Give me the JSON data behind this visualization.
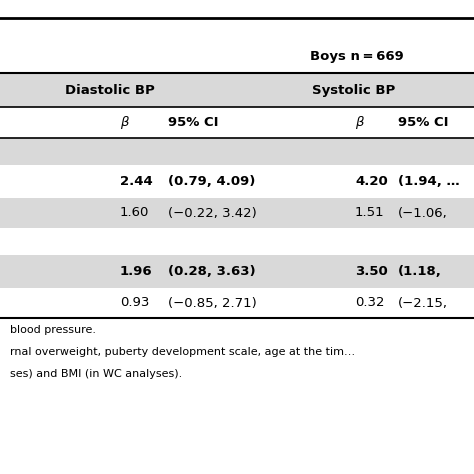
{
  "boys_label": "Boys n = 669",
  "col_header_diastolic": "Diastolic BP",
  "col_header_systolic": "Systolic BP",
  "sub_beta": "β",
  "sub_ci": "95% CI",
  "rows": [
    {
      "d_beta": "",
      "d_ci": "",
      "s_beta": "",
      "s_ci": "",
      "bold": true,
      "bg": "#d9d9d9"
    },
    {
      "d_beta": "2.44",
      "d_ci": "(0.79, 4.09)",
      "s_beta": "4.20",
      "s_ci": "(1.94, …",
      "bold": true,
      "bg": "#ffffff"
    },
    {
      "d_beta": "1.60",
      "d_ci": "(−0.22, 3.42)",
      "s_beta": "1.51",
      "s_ci": "(−1.06,",
      "bold": false,
      "bg": "#d9d9d9"
    },
    {
      "d_beta": "",
      "d_ci": "",
      "s_beta": "",
      "s_ci": "",
      "bold": true,
      "bg": "#ffffff"
    },
    {
      "d_beta": "1.96",
      "d_ci": "(0.28, 3.63)",
      "s_beta": "3.50",
      "s_ci": "(1.18,",
      "bold": true,
      "bg": "#d9d9d9"
    },
    {
      "d_beta": "0.93",
      "d_ci": "(−0.85, 2.71)",
      "s_beta": "0.32",
      "s_ci": "(−2.15,",
      "bold": false,
      "bg": "#ffffff"
    }
  ],
  "footnotes": [
    "blood pressure.",
    "rnal overweight, puberty development scale, age at the tim…",
    "ses) and BMI (in WC analyses)."
  ],
  "bg_color": "#ffffff",
  "header_bg": "#d9d9d9",
  "line_color": "#000000",
  "text_color": "#000000"
}
